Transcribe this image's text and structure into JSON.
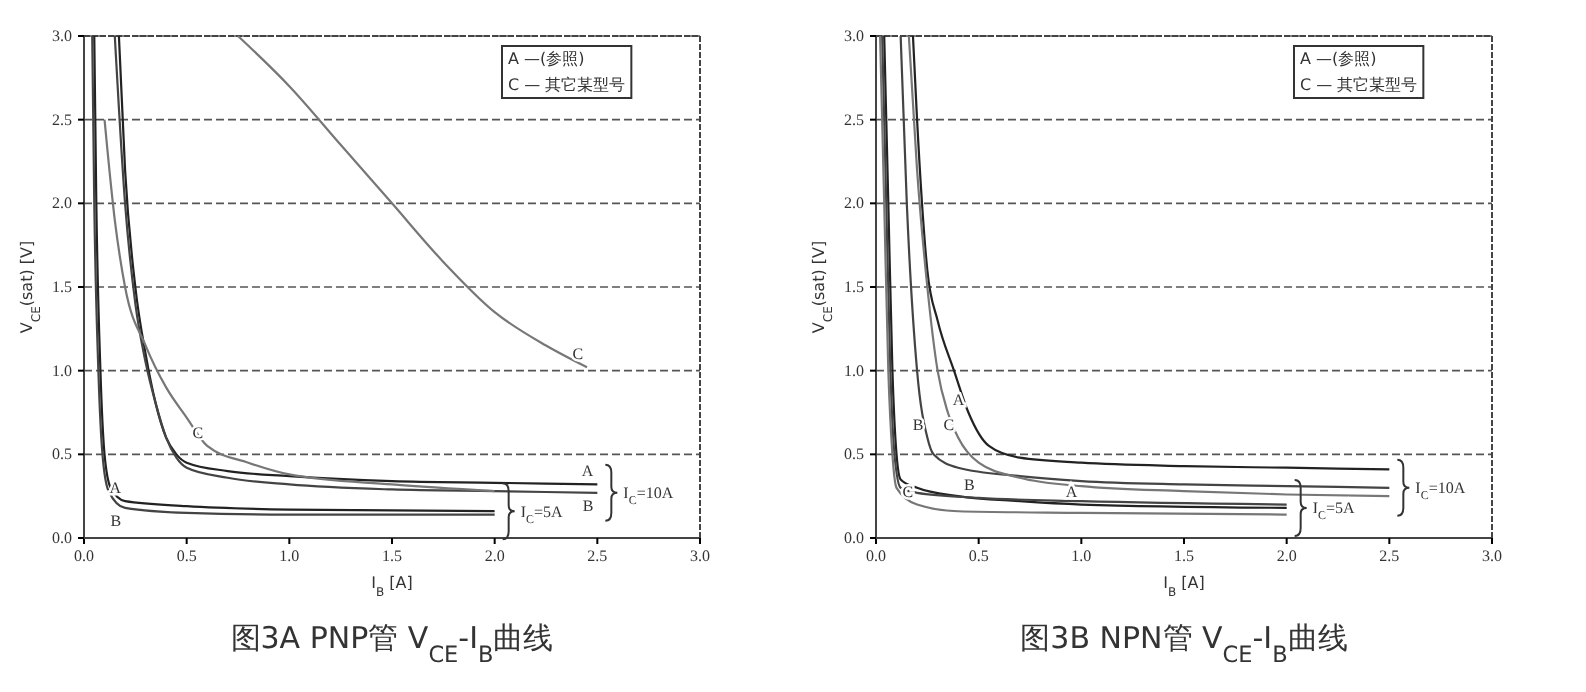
{
  "chart_data": [
    {
      "type": "line",
      "title": "图3A PNP管 V$_{CE}$-I$_{B}$曲线",
      "xlabel": "I$_{B}$ [A]",
      "ylabel": "V$_{CE}$(sat) [V]",
      "xlim": [
        0,
        3
      ],
      "ylim": [
        0,
        3
      ],
      "xticks": [
        {
          "value": 0,
          "label": "0.0"
        },
        {
          "value": 0.5,
          "label": "0.5"
        },
        {
          "value": 1,
          "label": "1.0"
        },
        {
          "value": 1.5,
          "label": "1.5"
        },
        {
          "value": 2,
          "label": "2.0"
        },
        {
          "value": 2.5,
          "label": "2.5"
        },
        {
          "value": 3,
          "label": "3.0"
        }
      ],
      "yticks": [
        {
          "value": 0,
          "label": "0.0"
        },
        {
          "value": 0.5,
          "label": "0.5"
        },
        {
          "value": 1,
          "label": "1.0"
        },
        {
          "value": 1.5,
          "label": "1.5"
        },
        {
          "value": 2,
          "label": "2.0"
        },
        {
          "value": 2.5,
          "label": "2.5"
        },
        {
          "value": 3,
          "label": "3.0"
        }
      ],
      "grid": "y",
      "line_style": "solid",
      "series": [
        {
          "color": "#222222",
          "x": [
            0.17,
            0.2,
            0.25,
            0.3,
            0.35,
            0.4,
            0.45,
            0.5,
            0.7,
            1.0,
            1.5,
            2.0,
            2.5
          ],
          "values": [
            3.0,
            2.2,
            1.5,
            1.1,
            0.8,
            0.6,
            0.5,
            0.45,
            0.4,
            0.37,
            0.34,
            0.33,
            0.32
          ]
        },
        {
          "color": "#444444",
          "x": [
            0.15,
            0.2,
            0.25,
            0.3,
            0.35,
            0.4,
            0.45,
            0.5,
            0.7,
            1.0,
            1.5,
            2.0,
            2.5
          ],
          "values": [
            3.0,
            2.0,
            1.4,
            1.05,
            0.8,
            0.6,
            0.48,
            0.42,
            0.36,
            0.32,
            0.29,
            0.28,
            0.27
          ]
        },
        {
          "color": "#777777",
          "x": [
            0.75,
            1.0,
            1.25,
            1.5,
            1.75,
            2.0,
            2.25,
            2.45
          ],
          "values": [
            3.0,
            2.7,
            2.35,
            2.0,
            1.65,
            1.35,
            1.15,
            1.02
          ]
        },
        {
          "color": "#777777",
          "x": [
            0.1,
            0.15,
            0.2,
            0.3,
            0.4,
            0.5,
            0.6,
            0.8,
            1.0,
            1.5,
            2.0
          ],
          "values": [
            2.5,
            1.9,
            1.5,
            1.15,
            0.9,
            0.72,
            0.55,
            0.45,
            0.38,
            0.32,
            0.28
          ]
        },
        {
          "color": "#222222",
          "x": [
            0.05,
            0.06,
            0.08,
            0.1,
            0.13,
            0.2,
            0.5,
            1.0,
            2.0
          ],
          "values": [
            3.0,
            2.0,
            1.0,
            0.5,
            0.3,
            0.22,
            0.19,
            0.17,
            0.16
          ]
        },
        {
          "color": "#444444",
          "x": [
            0.04,
            0.05,
            0.07,
            0.09,
            0.12,
            0.2,
            0.5,
            1.0,
            2.0
          ],
          "values": [
            3.0,
            2.0,
            1.0,
            0.5,
            0.28,
            0.18,
            0.15,
            0.14,
            0.14
          ]
        }
      ],
      "annotations": [
        "A —(参照)",
        "C — 其它某型号",
        {
          "text": "C",
          "x": 2.45,
          "y": 1.02
        },
        {
          "text": "C",
          "x": 0.6,
          "y": 0.55
        },
        {
          "text": "A",
          "x": 2.5,
          "y": 0.32
        },
        {
          "text": "B",
          "x": 2.5,
          "y": 0.27
        },
        {
          "text": "A",
          "x": 0.2,
          "y": 0.22
        },
        {
          "text": "B",
          "x": 0.2,
          "y": 0.18
        },
        {
          "text": "I$_{C}$=10A",
          "x": 2.5,
          "y": 0.27
        },
        {
          "text": "I$_{C}$=5A",
          "x": 2.0,
          "y": 0.16
        }
      ]
    },
    {
      "type": "line",
      "title": "图3B NPN管 V$_{CE}$-I$_{B}$曲线",
      "xlabel": "I$_{B}$ [A]",
      "ylabel": "V$_{CE}$(sat) [V]",
      "xlim": [
        0,
        3
      ],
      "ylim": [
        0,
        3
      ],
      "xticks": [
        {
          "value": 0,
          "label": "0.0"
        },
        {
          "value": 0.5,
          "label": "0.5"
        },
        {
          "value": 1,
          "label": "1.0"
        },
        {
          "value": 1.5,
          "label": "1.5"
        },
        {
          "value": 2,
          "label": "2.0"
        },
        {
          "value": 2.5,
          "label": "2.5"
        },
        {
          "value": 3,
          "label": "3.0"
        }
      ],
      "yticks": [
        {
          "value": 0,
          "label": "0.0"
        },
        {
          "value": 0.5,
          "label": "0.5"
        },
        {
          "value": 1,
          "label": "1.0"
        },
        {
          "value": 1.5,
          "label": "1.5"
        },
        {
          "value": 2,
          "label": "2.0"
        },
        {
          "value": 2.5,
          "label": "2.5"
        },
        {
          "value": 3,
          "label": "3.0"
        }
      ],
      "grid": "y",
      "line_style": "solid",
      "series": [
        {
          "color": "#222222",
          "x": [
            0.18,
            0.2,
            0.25,
            0.3,
            0.38,
            0.45,
            0.55,
            0.7,
            1.0,
            1.5,
            2.0,
            2.5
          ],
          "values": [
            3.0,
            2.5,
            1.6,
            1.3,
            1.0,
            0.75,
            0.55,
            0.48,
            0.45,
            0.43,
            0.42,
            0.41
          ]
        },
        {
          "color": "#444444",
          "x": [
            0.12,
            0.15,
            0.2,
            0.25,
            0.28,
            0.4,
            0.7,
            1.0,
            1.5,
            2.0,
            2.5
          ],
          "values": [
            3.0,
            2.0,
            1.0,
            0.6,
            0.5,
            0.42,
            0.37,
            0.34,
            0.32,
            0.31,
            0.3
          ]
        },
        {
          "color": "#777777",
          "x": [
            0.16,
            0.2,
            0.25,
            0.3,
            0.35,
            0.4,
            0.5,
            0.7,
            1.0,
            1.5,
            2.0,
            2.5
          ],
          "values": [
            3.0,
            2.2,
            1.5,
            1.0,
            0.75,
            0.6,
            0.45,
            0.36,
            0.31,
            0.28,
            0.26,
            0.25
          ]
        },
        {
          "color": "#222222",
          "x": [
            0.04,
            0.06,
            0.08,
            0.1,
            0.12,
            0.2,
            0.4,
            0.7,
            1.0,
            2.0
          ],
          "values": [
            3.0,
            2.0,
            1.0,
            0.5,
            0.35,
            0.3,
            0.25,
            0.22,
            0.2,
            0.18
          ]
        },
        {
          "color": "#444444",
          "x": [
            0.03,
            0.05,
            0.07,
            0.09,
            0.12,
            0.2,
            0.5,
            1.0,
            2.0
          ],
          "values": [
            3.0,
            2.0,
            1.0,
            0.5,
            0.3,
            0.27,
            0.24,
            0.22,
            0.2
          ]
        },
        {
          "color": "#777777",
          "x": [
            0.02,
            0.04,
            0.06,
            0.08,
            0.1,
            0.2,
            0.4,
            1.0,
            2.0
          ],
          "values": [
            3.0,
            2.0,
            1.0,
            0.5,
            0.3,
            0.2,
            0.16,
            0.15,
            0.14
          ]
        }
      ],
      "annotations": [
        "A —(参照)",
        "C — 其它某型号",
        {
          "text": "A",
          "x": 0.45,
          "y": 0.75
        },
        {
          "text": "B",
          "x": 0.25,
          "y": 0.6
        },
        {
          "text": "C",
          "x": 0.4,
          "y": 0.6
        },
        {
          "text": "B",
          "x": 0.5,
          "y": 0.24
        },
        {
          "text": "A",
          "x": 1.0,
          "y": 0.2
        },
        {
          "text": "C",
          "x": 0.2,
          "y": 0.2
        },
        {
          "text": "I$_{C}$=10A",
          "x": 2.5,
          "y": 0.3
        },
        {
          "text": "I$_{C}$=5A",
          "x": 2.0,
          "y": 0.18
        }
      ]
    }
  ]
}
